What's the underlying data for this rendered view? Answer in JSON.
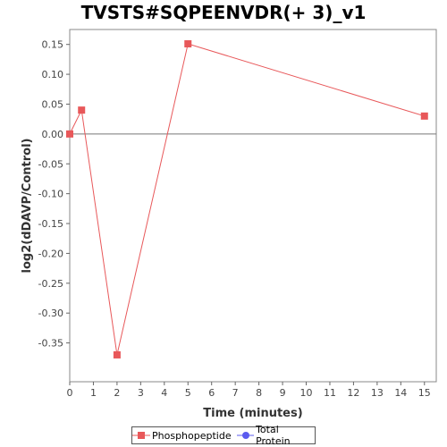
{
  "chart_data": {
    "type": "line",
    "title": "TVSTS#SQPEENVDR(+ 3)_v1",
    "xlabel": "Time (minutes)",
    "ylabel": "log2(dDAVP/Control)",
    "xlim": [
      0,
      15.5
    ],
    "ylim": [
      -0.415,
      0.175
    ],
    "x_ticks": [
      0,
      1,
      2,
      3,
      4,
      5,
      6,
      7,
      8,
      9,
      10,
      11,
      12,
      13,
      14,
      15
    ],
    "y_ticks": [
      0.15,
      0.1,
      0.05,
      0.0,
      -0.05,
      -0.1,
      -0.15,
      -0.2,
      -0.25,
      -0.3,
      -0.35
    ],
    "x_tick_labels": [
      "0",
      "1",
      "2",
      "3",
      "4",
      "5",
      "6",
      "7",
      "8",
      "9",
      "10",
      "11",
      "12",
      "13",
      "14",
      "15"
    ],
    "y_tick_labels": [
      "0.15",
      "0.10",
      "0.05",
      "0.00",
      "-0.05",
      "-0.10",
      "-0.15",
      "-0.20",
      "-0.25",
      "-0.30",
      "-0.35"
    ],
    "zero_line": true,
    "grid": false,
    "legend_position": "bottom",
    "series": [
      {
        "name": "Phosphopeptide",
        "color": "#e8585a",
        "marker": "square",
        "points": [
          {
            "x": 0,
            "y": 0.0
          },
          {
            "x": 0.5,
            "y": 0.04
          },
          {
            "x": 2,
            "y": -0.37
          },
          {
            "x": 5,
            "y": 0.151
          },
          {
            "x": 15,
            "y": 0.03
          }
        ]
      },
      {
        "name": "Total Protein",
        "color": "#5b5bef",
        "marker": "circle",
        "points": []
      }
    ]
  }
}
